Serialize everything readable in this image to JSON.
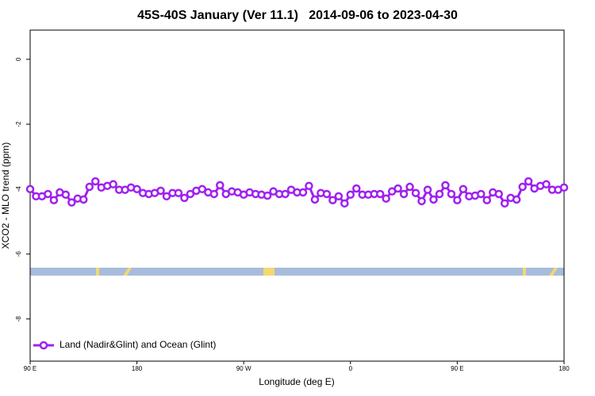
{
  "chart_data": {
    "type": "line",
    "title": "45S-40S January (Ver 11.1)   2014-09-06 to 2023-04-30",
    "x_label": "Longitude (deg E)",
    "y_label": "XCO2 - MLO trend (ppm)",
    "xlim": [
      90,
      540
    ],
    "xticks": [
      {
        "value": 90,
        "label": "90 E"
      },
      180,
      {
        "value": 270,
        "label": "90 W"
      },
      {
        "value": 360,
        "label": "0"
      },
      {
        "value": 450,
        "label": "90 E"
      },
      {
        "value": 540,
        "label": "180"
      }
    ],
    "ylim": [
      -9.3,
      0.9
    ],
    "yticks": [
      0,
      -2,
      -4,
      -6,
      -8
    ],
    "legend": "bottom-left",
    "x": [
      90,
      95,
      100,
      105,
      110,
      115,
      120,
      125,
      130,
      135,
      140,
      145,
      150,
      155,
      160,
      165,
      170,
      175,
      180,
      185,
      190,
      195,
      200,
      205,
      210,
      215,
      220,
      225,
      230,
      235,
      240,
      245,
      250,
      255,
      260,
      265,
      270,
      275,
      280,
      285,
      290,
      295,
      300,
      305,
      310,
      315,
      320,
      325,
      330,
      335,
      340,
      345,
      350,
      355,
      360,
      365,
      370,
      375,
      380,
      385,
      390,
      395,
      400,
      405,
      410,
      415,
      420,
      425,
      430,
      435,
      440,
      445,
      450,
      455,
      460,
      465,
      470,
      475,
      480,
      485,
      490,
      495,
      500,
      505,
      510,
      515,
      520,
      525,
      530,
      535,
      540
    ],
    "series": [
      {
        "name": "Land (Nadir&Glint) and Ocean (Glint)",
        "color": "#a020f0",
        "values": [
          -4.0,
          -4.22,
          -4.22,
          -4.15,
          -4.34,
          -4.1,
          -4.17,
          -4.41,
          -4.29,
          -4.32,
          -3.93,
          -3.76,
          -3.95,
          -3.9,
          -3.85,
          -4.02,
          -4.02,
          -3.95,
          -4.0,
          -4.12,
          -4.15,
          -4.12,
          -4.05,
          -4.22,
          -4.12,
          -4.12,
          -4.27,
          -4.15,
          -4.05,
          -4.0,
          -4.1,
          -4.15,
          -3.88,
          -4.15,
          -4.07,
          -4.1,
          -4.17,
          -4.1,
          -4.15,
          -4.17,
          -4.2,
          -4.07,
          -4.15,
          -4.15,
          -4.02,
          -4.1,
          -4.1,
          -3.9,
          -4.32,
          -4.12,
          -4.15,
          -4.34,
          -4.22,
          -4.44,
          -4.17,
          -3.98,
          -4.17,
          -4.17,
          -4.15,
          -4.15,
          -4.29,
          -4.07,
          -3.98,
          -4.15,
          -3.93,
          -4.12,
          -4.37,
          -4.02,
          -4.32,
          -4.15,
          -3.88,
          -4.15,
          -4.34,
          -4.0,
          -4.22,
          -4.2,
          -4.15,
          -4.34,
          -4.1,
          -4.15,
          -4.44,
          -4.27,
          -4.32,
          -3.93,
          -3.76,
          -3.98,
          -3.9,
          -3.85,
          -4.02,
          -4.02,
          -3.95
        ]
      }
    ]
  }
}
